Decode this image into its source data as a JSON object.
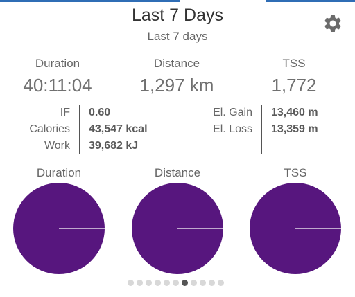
{
  "header": {
    "title": "Last 7 Days",
    "subtitle": "Last 7 days",
    "settings_icon": "gear-icon"
  },
  "summary": [
    {
      "label": "Duration",
      "value": "40:11:04"
    },
    {
      "label": "Distance",
      "value": "1,297 km"
    },
    {
      "label": "TSS",
      "value": "1,772"
    }
  ],
  "metrics_left": [
    {
      "label": "IF",
      "value": "0.60"
    },
    {
      "label": "Calories",
      "value": "43,547 kcal"
    },
    {
      "label": "Work",
      "value": "39,682 kJ"
    }
  ],
  "metrics_right": [
    {
      "label": "El. Gain",
      "value": "13,460 m"
    },
    {
      "label": "El. Loss",
      "value": "13,359 m"
    }
  ],
  "pies": [
    {
      "label": "Duration",
      "fraction": 1.0
    },
    {
      "label": "Distance",
      "fraction": 1.0
    },
    {
      "label": "TSS",
      "fraction": 1.0
    }
  ],
  "pager": {
    "total": 11,
    "active_index": 6
  },
  "colors": {
    "pie_fill": "#57167e",
    "accent_bar": "#2f6db5"
  }
}
